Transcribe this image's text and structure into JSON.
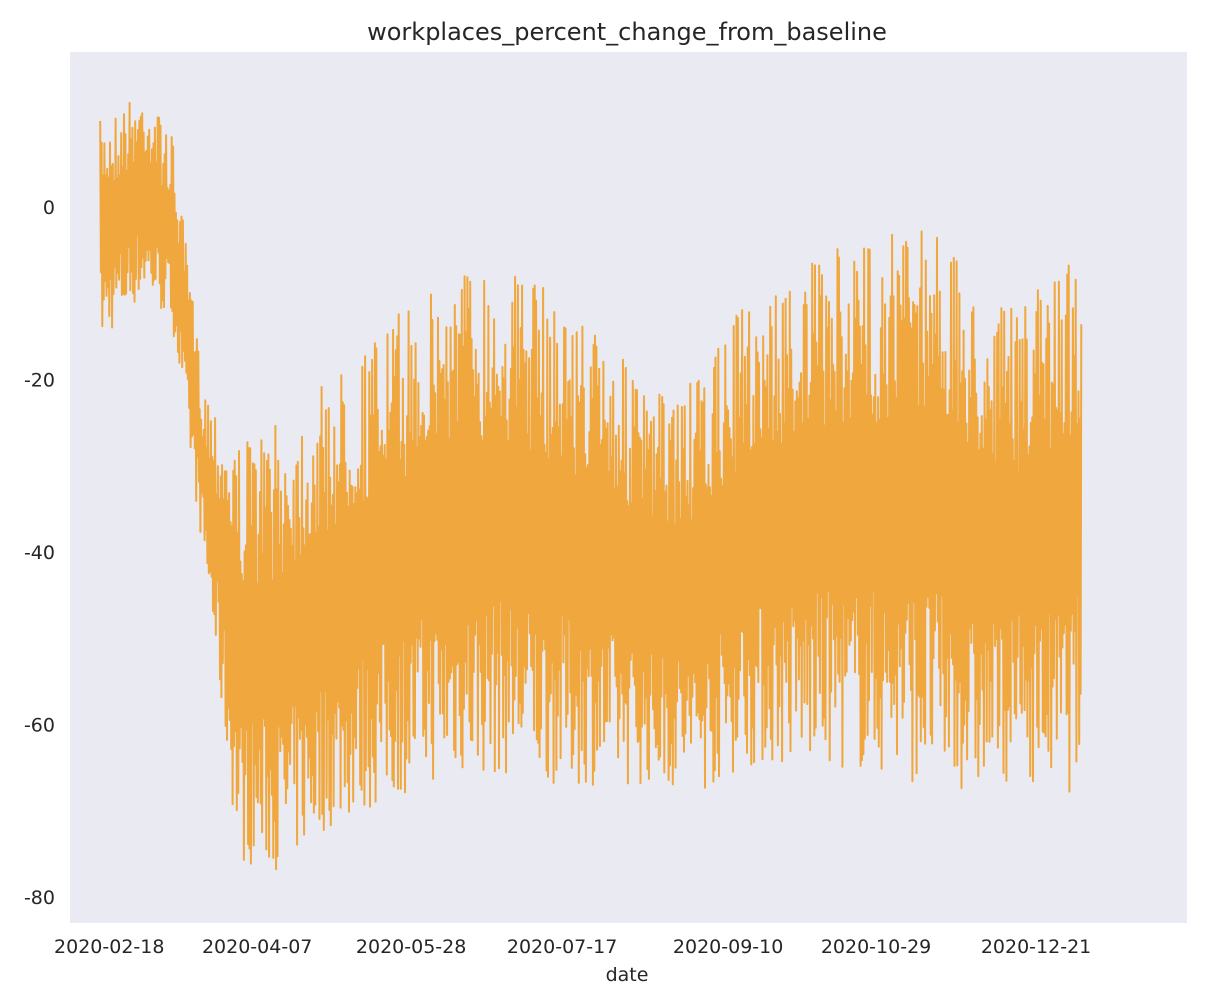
{
  "chart_data": {
    "type": "line",
    "title": "workplaces_percent_change_from_baseline",
    "xlabel": "date",
    "ylabel": "",
    "x_ticks": [
      "2020-02-18",
      "2020-04-07",
      "2020-05-28",
      "2020-07-17",
      "2020-09-10",
      "2020-10-29",
      "2020-12-21"
    ],
    "y_ticks": [
      0,
      -20,
      -40,
      -60,
      -80
    ],
    "xlim": [
      "2020-02-05",
      "2021-02-09"
    ],
    "ylim": [
      -83,
      18
    ],
    "grid": false,
    "background": "#eaeaf2",
    "line_color": "#f0a73d",
    "series": [
      {
        "x": [
          "2020-02-15",
          "2020-03-01",
          "2020-03-10",
          "2020-03-20",
          "2020-04-01",
          "2020-04-15",
          "2020-05-01",
          "2020-05-15",
          "2020-06-01",
          "2020-06-15",
          "2020-07-01",
          "2020-07-15",
          "2020-08-01",
          "2020-08-15",
          "2020-09-01",
          "2020-09-15",
          "2020-10-01",
          "2020-10-15",
          "2020-11-01",
          "2020-11-15",
          "2020-12-01",
          "2020-12-15",
          "2021-01-01",
          "2021-01-05"
        ],
        "upper": [
          10,
          14,
          8,
          -20,
          -27,
          -25,
          -20,
          -15,
          -10,
          -6,
          -7,
          -10,
          -15,
          -22,
          -20,
          -11,
          -8,
          -5,
          -3,
          0,
          -10,
          -12,
          -5,
          -3
        ],
        "lower": [
          -16,
          -10,
          -14,
          -40,
          -76,
          -77,
          -72,
          -70,
          -67,
          -66,
          -66,
          -67,
          -67,
          -67,
          -68,
          -65,
          -65,
          -65,
          -66,
          -67,
          -68,
          -66,
          -68,
          -66
        ]
      }
    ]
  }
}
